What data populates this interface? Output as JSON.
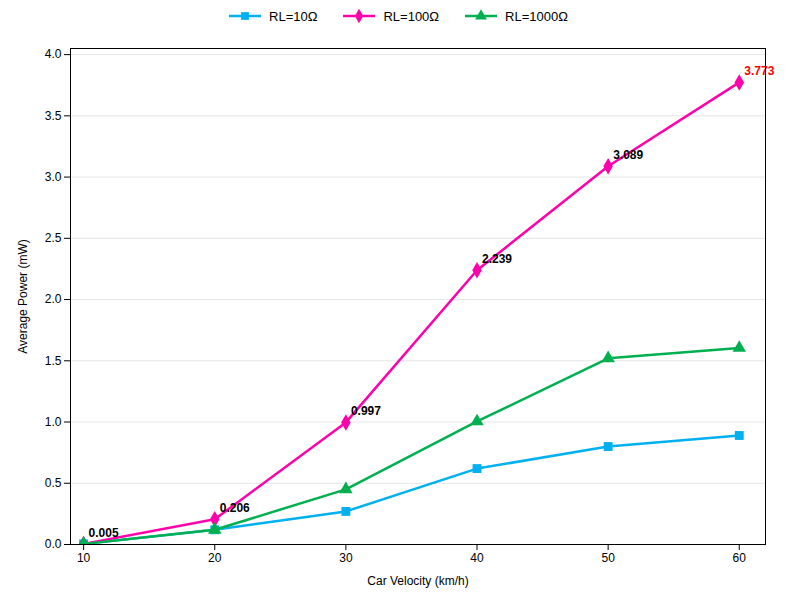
{
  "chart_data": {
    "type": "line",
    "xlabel": "Car Velocity (km/h)",
    "ylabel": "Average Power (mW)",
    "x": [
      10,
      20,
      30,
      40,
      50,
      60
    ],
    "series": [
      {
        "name": "RL=10Ω",
        "color": "#00b0f0",
        "marker": "square",
        "values": [
          0.005,
          0.12,
          0.27,
          0.62,
          0.8,
          0.89
        ]
      },
      {
        "name": "RL=100Ω",
        "color": "#ff00aa",
        "marker": "diamond",
        "values": [
          0.005,
          0.206,
          0.997,
          2.239,
          3.089,
          3.773
        ]
      },
      {
        "name": "RL=1000Ω",
        "color": "#00b050",
        "marker": "triangle",
        "values": [
          0.005,
          0.12,
          0.45,
          1.005,
          1.52,
          1.605
        ]
      }
    ],
    "xlim": [
      9,
      62
    ],
    "ylim": [
      0,
      4.05
    ],
    "xticks": [
      10,
      20,
      30,
      40,
      50,
      60
    ],
    "yticks": [
      {
        "value": 0,
        "label": "0.0"
      },
      0.5,
      {
        "value": 1.0,
        "label": "1.0"
      },
      1.5,
      {
        "value": 2.0,
        "label": "2.0"
      },
      2.5,
      {
        "value": 3.0,
        "label": "3.0"
      },
      3.5,
      {
        "value": 4.0,
        "label": "4.0"
      }
    ],
    "grid": "y",
    "legend": "top",
    "annotations": [
      {
        "x": 20,
        "y": 0.206,
        "text": "0.206",
        "color": "black"
      },
      {
        "x": 30,
        "y": 0.997,
        "text": "0.997",
        "color": "black"
      },
      {
        "x": 40,
        "y": 2.239,
        "text": "2.239",
        "color": "black"
      },
      {
        "x": 50,
        "y": 3.089,
        "text": "3.089",
        "color": "black"
      },
      {
        "x": 60,
        "y": 3.773,
        "text": "3.773",
        "color": "red"
      },
      {
        "x": 10,
        "y": 0.005,
        "text": "0.005",
        "color": "black"
      }
    ]
  }
}
